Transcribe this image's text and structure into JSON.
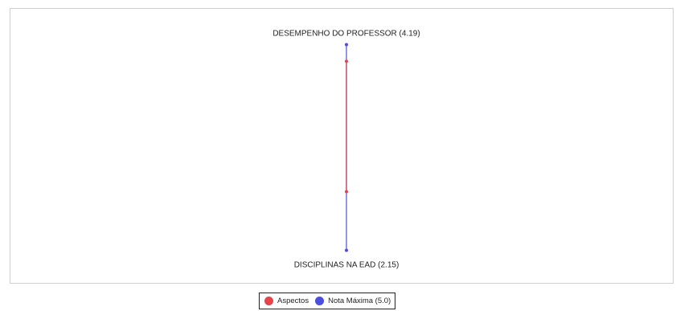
{
  "chart_data": {
    "type": "radar",
    "axes": [
      {
        "label": "DESEMPENHO DO PROFESSOR (4.19)",
        "value": 4.19,
        "max": 5.0
      },
      {
        "label": "DISCIPLINAS NA EAD (2.15)",
        "value": 2.15,
        "max": 5.0
      }
    ],
    "series": [
      {
        "name": "Aspectos",
        "color": "#e8434b",
        "values": [
          4.19,
          2.15
        ]
      },
      {
        "name": "Nota Máxima (5.0)",
        "color": "#4a4fe0",
        "values": [
          5.0,
          5.0
        ]
      }
    ],
    "range": [
      0,
      5.0
    ],
    "legend_position": "bottom-center"
  },
  "legend": {
    "items": [
      {
        "label": "Aspectos",
        "color": "#e8434b"
      },
      {
        "label": "Nota Máxima (5.0)",
        "color": "#4a4fe0"
      }
    ]
  }
}
